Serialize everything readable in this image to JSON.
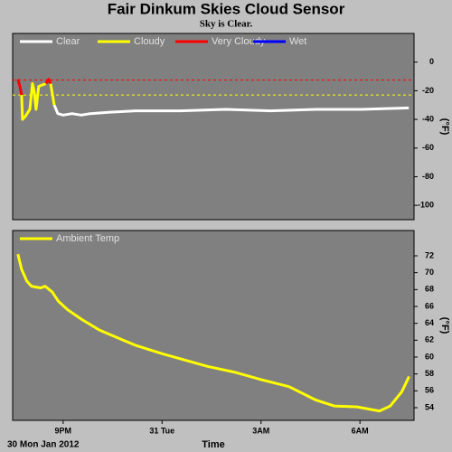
{
  "chart_data": [
    {
      "type": "line",
      "title": "Fair Dinkum Skies Cloud Sensor",
      "subtitle": "Sky is Clear.",
      "ylabel": "(°F)",
      "x": [
        19.63,
        19.69,
        19.74,
        19.77,
        19.85,
        19.99,
        20.07,
        20.12,
        20.18,
        20.26,
        20.37,
        20.48,
        20.56,
        20.62,
        20.73,
        20.84,
        21.0,
        21.27,
        21.55,
        21.82,
        22.37,
        23.19,
        24.55,
        25.92,
        27.29,
        28.66,
        30.03,
        31.48
      ],
      "series": [
        {
          "name": "Clear",
          "color": "#ffffff",
          "values": [
            null,
            null,
            null,
            null,
            null,
            null,
            null,
            null,
            null,
            null,
            null,
            null,
            null,
            null,
            -30,
            -36,
            -37,
            -36,
            -37,
            -36,
            -35,
            -34,
            -34,
            -33,
            -34,
            -33,
            -33,
            -32
          ]
        },
        {
          "name": "Cloudy",
          "color": "#ffff00",
          "values": [
            null,
            null,
            -23,
            -40,
            -38,
            -33,
            -15,
            -20,
            -33,
            -17,
            -16,
            -15,
            null,
            -15,
            -30,
            null,
            null,
            null,
            null,
            null,
            null,
            null,
            null,
            null,
            null,
            null,
            null,
            null
          ]
        },
        {
          "name": "Very Cloudy",
          "color": "#ff0000",
          "values": [
            -12,
            -17,
            -23,
            null,
            null,
            null,
            null,
            null,
            null,
            null,
            null,
            -15,
            -12,
            -15,
            null,
            null,
            null,
            null,
            null,
            null,
            null,
            null,
            null,
            null,
            null,
            null,
            null,
            null
          ]
        },
        {
          "name": "Wet",
          "color": "#0000ff",
          "values": [
            null,
            null,
            null,
            null,
            null,
            null,
            null,
            null,
            null,
            null,
            null,
            null,
            null,
            null,
            null,
            null,
            null,
            null,
            null,
            null,
            null,
            null,
            null,
            null,
            null,
            null,
            null,
            null
          ]
        }
      ],
      "thresholds": [
        {
          "value": -12.5,
          "color": "#ff0000"
        },
        {
          "value": -23,
          "color": "#ffff00"
        }
      ],
      "xlim": [
        19.47,
        31.64
      ],
      "ylim": [
        -110,
        20
      ],
      "yticks": [
        0,
        -20,
        -40,
        -60,
        -80,
        -100
      ]
    },
    {
      "type": "line",
      "xlabel": "Time",
      "date_label": "30 Mon Jan 2012",
      "ylabel": "(°F)",
      "x": [
        19.63,
        19.74,
        19.9,
        20.04,
        20.32,
        20.45,
        20.67,
        20.86,
        21.14,
        21.55,
        22.1,
        22.64,
        23.19,
        24.01,
        24.56,
        25.38,
        26.21,
        27.03,
        27.85,
        28.67,
        29.22,
        29.92,
        30.59,
        30.92,
        31.27,
        31.49
      ],
      "series": [
        {
          "name": "Ambient Temp",
          "color": "#ffff00",
          "values": [
            72.2,
            70.4,
            69.0,
            68.4,
            68.2,
            68.4,
            67.7,
            66.6,
            65.6,
            64.5,
            63.2,
            62.3,
            61.4,
            60.4,
            59.8,
            58.9,
            58.2,
            57.3,
            56.5,
            54.9,
            54.2,
            54.1,
            53.6,
            54.2,
            55.9,
            57.7
          ]
        }
      ],
      "xlim": [
        19.47,
        31.64
      ],
      "ylim": [
        52.5,
        75
      ],
      "yticks": [
        72,
        70,
        68,
        66,
        64,
        62,
        60,
        58,
        56,
        54
      ],
      "xticks": [
        {
          "value": 21,
          "label": "9PM"
        },
        {
          "value": 24,
          "label": "31 Tue"
        },
        {
          "value": 27,
          "label": "3AM"
        },
        {
          "value": 30,
          "label": "6AM"
        }
      ]
    }
  ]
}
